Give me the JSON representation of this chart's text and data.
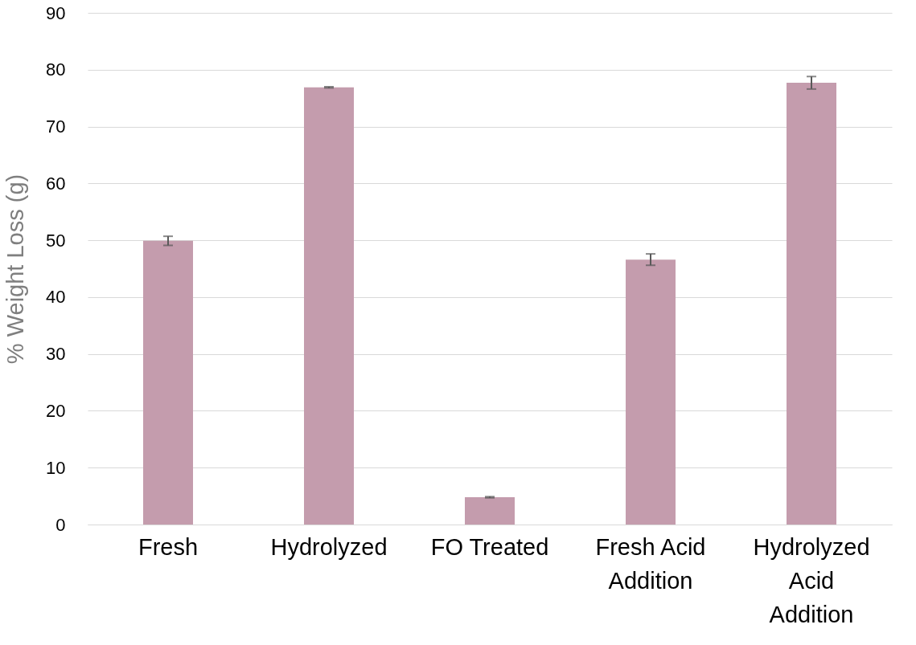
{
  "chart_data": {
    "type": "bar",
    "ylabel": "% Weight Loss (g)",
    "categories": [
      "Fresh",
      "Hydrolyzed",
      "FO Treated",
      "Fresh Acid Addition",
      "Hydrolyzed Acid Addition"
    ],
    "values": [
      49.9,
      76.9,
      4.8,
      46.6,
      77.7
    ],
    "errors": [
      0.8,
      0.1,
      0.1,
      1.0,
      1.1
    ],
    "color": "#c49cad",
    "ylim": [
      0,
      90
    ],
    "yticks": [
      0,
      10,
      20,
      30,
      40,
      50,
      60,
      70,
      80,
      90
    ],
    "grid": "y"
  }
}
